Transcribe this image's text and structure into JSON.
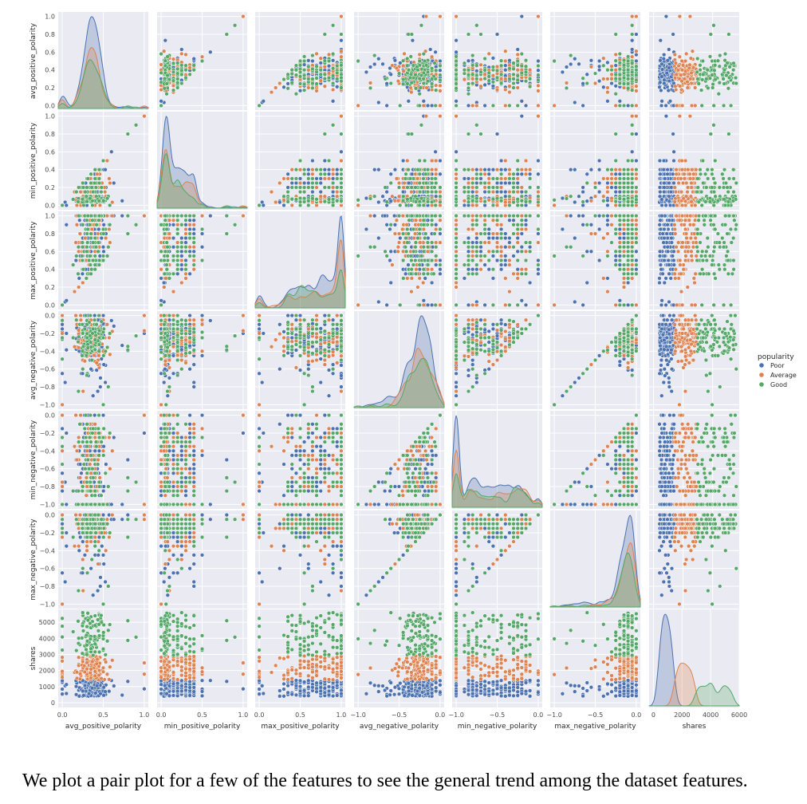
{
  "chart_data": {
    "type": "pairplot",
    "variables": [
      "avg_positive_polarity",
      "min_positive_polarity",
      "max_positive_polarity",
      "avg_negative_polarity",
      "min_negative_polarity",
      "max_negative_polarity",
      "shares"
    ],
    "ranges": [
      [
        -0.05,
        1.05
      ],
      [
        -0.05,
        1.05
      ],
      [
        -0.05,
        1.05
      ],
      [
        -1.05,
        0.05
      ],
      [
        -1.05,
        0.05
      ],
      [
        -1.05,
        0.05
      ],
      [
        -300,
        5800
      ]
    ],
    "diag_x_range_shares": [
      -300,
      6000
    ],
    "ticks": [
      {
        "values": [
          0,
          0.2,
          0.4,
          0.6,
          0.8,
          1.0
        ],
        "labels": [
          "0.0",
          "0.2",
          "0.4",
          "0.6",
          "0.8",
          "1.0"
        ],
        "x_values": [
          0,
          0.5,
          1.0
        ],
        "x_labels": [
          "0.0",
          "0.5",
          "1.0"
        ]
      },
      {
        "values": [
          0,
          0.2,
          0.4,
          0.6,
          0.8,
          1.0
        ],
        "labels": [
          "0.0",
          "0.2",
          "0.4",
          "0.6",
          "0.8",
          "1.0"
        ],
        "x_values": [
          0,
          0.5,
          1.0
        ],
        "x_labels": [
          "0.0",
          "0.5",
          "1.0"
        ]
      },
      {
        "values": [
          0,
          0.2,
          0.4,
          0.6,
          0.8,
          1.0
        ],
        "labels": [
          "0.0",
          "0.2",
          "0.4",
          "0.6",
          "0.8",
          "1.0"
        ],
        "x_values": [
          0,
          0.5,
          1.0
        ],
        "x_labels": [
          "0.0",
          "0.5",
          "1.0"
        ]
      },
      {
        "values": [
          0,
          -0.2,
          -0.4,
          -0.6,
          -0.8,
          -1.0
        ],
        "labels": [
          "0.0",
          "−0.2",
          "−0.4",
          "−0.6",
          "−0.8",
          "−1.0"
        ],
        "x_values": [
          -1.0,
          -0.5,
          0
        ],
        "x_labels": [
          "−1.0",
          "−0.5",
          "0.0"
        ]
      },
      {
        "values": [
          0,
          -0.2,
          -0.4,
          -0.6,
          -0.8,
          -1.0
        ],
        "labels": [
          "0.0",
          "−0.2",
          "−0.4",
          "−0.6",
          "−0.8",
          "−1.0"
        ],
        "x_values": [
          -1.0,
          -0.5,
          0
        ],
        "x_labels": [
          "−1.0",
          "−0.5",
          "0.0"
        ]
      },
      {
        "values": [
          0,
          -0.2,
          -0.4,
          -0.6,
          -0.8,
          -1.0
        ],
        "labels": [
          "0.0",
          "−0.2",
          "−0.4",
          "−0.6",
          "−0.8",
          "−1.0"
        ],
        "x_values": [
          -1.0,
          -0.5,
          0
        ],
        "x_labels": [
          "−1.0",
          "−0.5",
          "0.0"
        ]
      },
      {
        "values": [
          0,
          1000,
          2000,
          3000,
          4000,
          5000
        ],
        "labels": [
          "0",
          "1000",
          "2000",
          "3000",
          "4000",
          "5000"
        ],
        "x_values": [
          0,
          2000,
          4000,
          6000
        ],
        "x_labels": [
          "0",
          "2000",
          "4000",
          "6000"
        ]
      }
    ],
    "hue": "popularity",
    "series": [
      {
        "name": "Poor",
        "color": "#4c72b0",
        "shares_range": [
          0,
          1400
        ]
      },
      {
        "name": "Average",
        "color": "#dd8452",
        "shares_range": [
          1400,
          2900
        ]
      },
      {
        "name": "Good",
        "color": "#55a868",
        "shares_range": [
          2900,
          5600
        ]
      }
    ],
    "legend": {
      "title": "popularity",
      "position": "right",
      "entries": [
        "Poor",
        "Average",
        "Good"
      ]
    },
    "diagonal": "kde",
    "off_diagonal": "scatter",
    "background": "#eaeaf2",
    "grid": true
  },
  "caption": "We plot a pair plot for a few of the features to see the general trend among the dataset features."
}
